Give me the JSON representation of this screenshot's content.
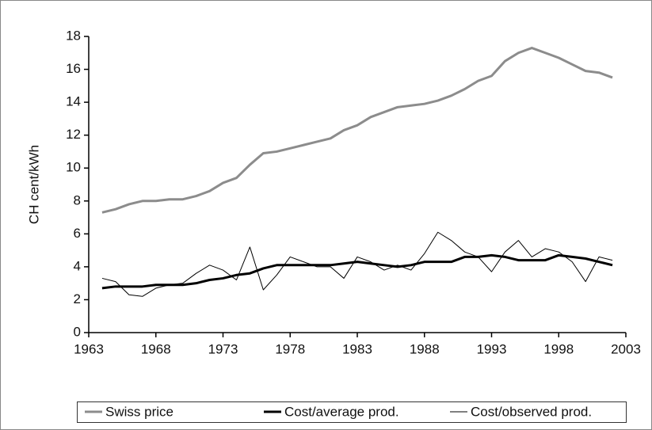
{
  "chart_data": {
    "type": "line",
    "ylabel": "CH cent/kWh",
    "x": [
      1964,
      1965,
      1966,
      1967,
      1968,
      1969,
      1970,
      1971,
      1972,
      1973,
      1974,
      1975,
      1976,
      1977,
      1978,
      1979,
      1980,
      1981,
      1982,
      1983,
      1984,
      1985,
      1986,
      1987,
      1988,
      1989,
      1990,
      1991,
      1992,
      1993,
      1994,
      1995,
      1996,
      1997,
      1998,
      1999,
      2000,
      2001,
      2002
    ],
    "series": [
      {
        "name": "Swiss price",
        "color": "#8c8c8c",
        "line_width": 3,
        "values": [
          7.3,
          7.5,
          7.8,
          8.0,
          8.0,
          8.1,
          8.1,
          8.3,
          8.6,
          9.1,
          9.4,
          10.2,
          10.9,
          11.0,
          11.2,
          11.4,
          11.6,
          11.8,
          12.3,
          12.6,
          13.1,
          13.4,
          13.7,
          13.8,
          13.9,
          14.1,
          14.4,
          14.8,
          15.3,
          15.6,
          16.5,
          17.0,
          17.3,
          17.0,
          16.7,
          16.3,
          15.9,
          15.8,
          15.5
        ]
      },
      {
        "name": "Cost/average prod.",
        "color": "#000000",
        "line_width": 3,
        "values": [
          2.7,
          2.8,
          2.8,
          2.8,
          2.9,
          2.9,
          2.9,
          3.0,
          3.2,
          3.3,
          3.5,
          3.6,
          3.9,
          4.1,
          4.1,
          4.1,
          4.1,
          4.1,
          4.2,
          4.3,
          4.2,
          4.1,
          4.0,
          4.1,
          4.3,
          4.3,
          4.3,
          4.6,
          4.6,
          4.7,
          4.6,
          4.4,
          4.4,
          4.4,
          4.7,
          4.6,
          4.5,
          4.3,
          4.1
        ]
      },
      {
        "name": "Cost/observed prod.",
        "color": "#000000",
        "line_width": 1,
        "values": [
          3.3,
          3.1,
          2.3,
          2.2,
          2.7,
          2.9,
          3.0,
          3.6,
          4.1,
          3.8,
          3.2,
          5.2,
          2.6,
          3.5,
          4.6,
          4.3,
          4.0,
          4.0,
          3.3,
          4.6,
          4.3,
          3.8,
          4.1,
          3.8,
          4.8,
          6.1,
          5.6,
          4.9,
          4.6,
          3.7,
          4.9,
          5.6,
          4.6,
          5.1,
          4.9,
          4.3,
          3.1,
          4.6,
          4.4
        ]
      }
    ],
    "xlim": [
      1963,
      2003
    ],
    "xticks": [
      1963,
      1968,
      1973,
      1978,
      1983,
      1988,
      1993,
      1998,
      2003
    ],
    "ylim": [
      0,
      18
    ],
    "yticks": [
      0,
      2,
      4,
      6,
      8,
      10,
      12,
      14,
      16,
      18
    ],
    "grid": false,
    "legend": "bottom"
  }
}
